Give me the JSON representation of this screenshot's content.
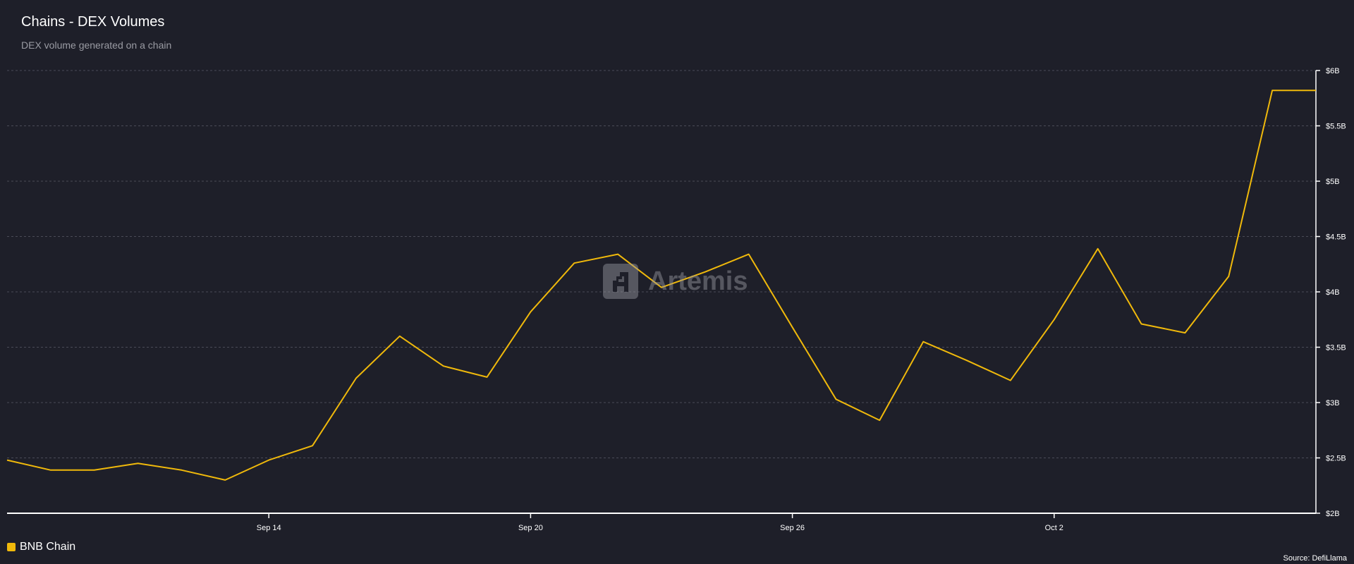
{
  "header": {
    "title": "Chains - DEX Volumes",
    "subtitle": "DEX volume generated on a chain"
  },
  "watermark": {
    "label": "Artemis",
    "icon": "artemis-logo-icon"
  },
  "legend": {
    "items": [
      {
        "label": "BNB Chain",
        "color": "#f0b90b"
      }
    ]
  },
  "footer": {
    "source": "Source: DefiLlama"
  },
  "chart_data": {
    "type": "line",
    "title": "Chains - DEX Volumes",
    "subtitle": "DEX volume generated on a chain",
    "xlabel": "",
    "ylabel": "",
    "x": [
      "Sep 8",
      "Sep 9",
      "Sep 10",
      "Sep 11",
      "Sep 12",
      "Sep 13",
      "Sep 14",
      "Sep 15",
      "Sep 16",
      "Sep 17",
      "Sep 18",
      "Sep 19",
      "Sep 20",
      "Sep 21",
      "Sep 22",
      "Sep 23",
      "Sep 24",
      "Sep 25",
      "Sep 26",
      "Sep 27",
      "Sep 28",
      "Sep 29",
      "Sep 30",
      "Oct 1",
      "Oct 2",
      "Oct 3",
      "Oct 4",
      "Oct 5",
      "Oct 6",
      "Oct 7",
      "Oct 8"
    ],
    "x_ticks": [
      "Sep 14",
      "Sep 20",
      "Sep 26",
      "Oct 2"
    ],
    "y_ticks": [
      "$2B",
      "$2.5B",
      "$3B",
      "$3.5B",
      "$4B",
      "$4.5B",
      "$5B",
      "$5.5B",
      "$6B"
    ],
    "ylim": [
      2,
      6
    ],
    "y_unit": "B USD",
    "grid": true,
    "legend_position": "bottom-left",
    "series": [
      {
        "name": "BNB Chain",
        "color": "#f0b90b",
        "values": [
          2.48,
          2.39,
          2.39,
          2.45,
          2.39,
          2.3,
          2.48,
          2.61,
          3.22,
          3.6,
          3.33,
          3.23,
          3.82,
          4.26,
          4.34,
          4.04,
          4.18,
          4.34,
          3.68,
          3.03,
          2.84,
          3.55,
          3.38,
          3.2,
          3.75,
          4.39,
          3.71,
          3.63,
          4.14,
          5.82,
          5.82
        ]
      }
    ]
  }
}
